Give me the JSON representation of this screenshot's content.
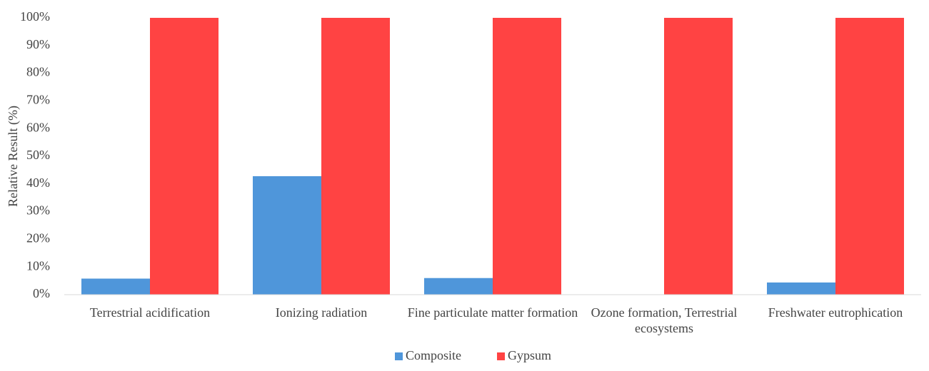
{
  "chart_data": {
    "type": "bar",
    "y_label": "Relative Result (%)",
    "categories": [
      "Terrestrial acidification",
      "Ionizing radiation",
      "Fine particulate matter formation",
      "Ozone formation, Terrestrial ecosystems",
      "Freshwater eutrophication"
    ],
    "series": [
      {
        "name": "Composite",
        "color": "#4f96da",
        "values": [
          5.8,
          42.8,
          6,
          0,
          4.4
        ]
      },
      {
        "name": "Gypsum",
        "color": "#ff4343",
        "values": [
          100,
          100,
          100,
          100,
          100
        ]
      }
    ],
    "ylim": [
      0,
      100
    ],
    "yticks": [
      {
        "value": 0,
        "label": "0%"
      },
      {
        "value": 10,
        "label": "10%"
      },
      {
        "value": 20,
        "label": "20%"
      },
      {
        "value": 30,
        "label": "30%"
      },
      {
        "value": 40,
        "label": "40%"
      },
      {
        "value": 50,
        "label": "50%"
      },
      {
        "value": 60,
        "label": "60%"
      },
      {
        "value": 70,
        "label": "70%"
      },
      {
        "value": 80,
        "label": "80%"
      },
      {
        "value": 90,
        "label": "90%"
      },
      {
        "value": 100,
        "label": "100%"
      }
    ],
    "grid": false,
    "legend": "bottom"
  }
}
